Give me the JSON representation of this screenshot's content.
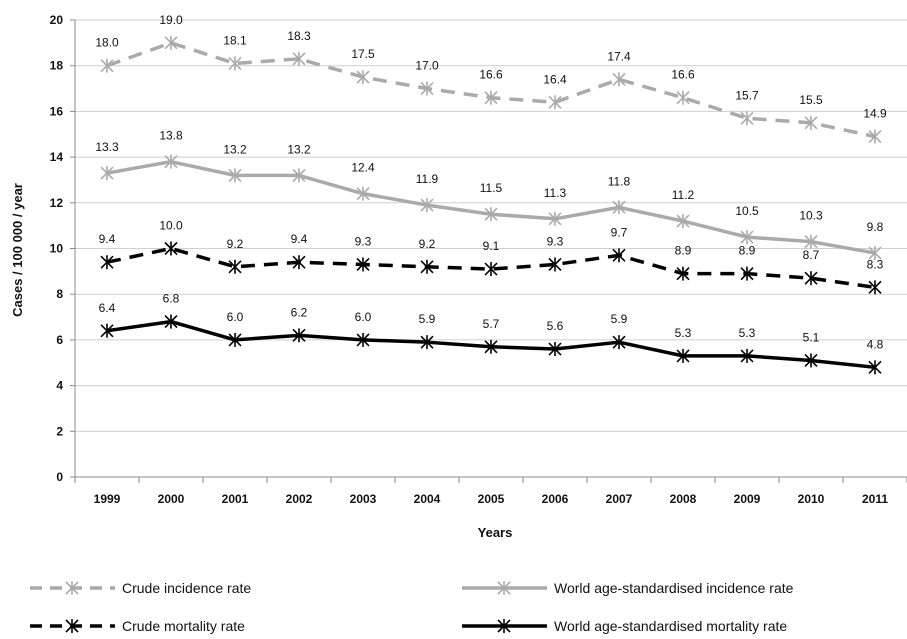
{
  "chart_data": {
    "type": "line",
    "xlabel": "Years",
    "ylabel": "Cases / 100 000 / year",
    "ylim": [
      0,
      20
    ],
    "yticks": [
      "0",
      "2",
      "4",
      "6",
      "8",
      "10",
      "12",
      "14",
      "16",
      "18",
      "20"
    ],
    "categories": [
      "1999",
      "2000",
      "2001",
      "2002",
      "2003",
      "2004",
      "2005",
      "2006",
      "2007",
      "2008",
      "2009",
      "2010",
      "2011"
    ],
    "grid": "horizontal",
    "legend_position": "bottom",
    "series": [
      {
        "name": "Crude incidence rate",
        "color": "#aaaaaa",
        "dash": "dashed",
        "values": [
          18.0,
          19.0,
          18.1,
          18.3,
          17.5,
          17.0,
          16.6,
          16.4,
          17.4,
          16.6,
          15.7,
          15.5,
          14.9
        ],
        "labels": [
          "18.0",
          "19.0",
          "18.1",
          "18.3",
          "17.5",
          "17.0",
          "16.6",
          "16.4",
          "17.4",
          "16.6",
          "15.7",
          "15.5",
          "14.9"
        ]
      },
      {
        "name": "World age-standardised  incidence  rate",
        "color": "#aaaaaa",
        "dash": "solid",
        "values": [
          13.3,
          13.8,
          13.2,
          13.2,
          12.4,
          11.9,
          11.5,
          11.3,
          11.8,
          11.2,
          10.5,
          10.3,
          9.8
        ],
        "labels": [
          "13.3",
          "13.8",
          "13.2",
          "13.2",
          "12.4",
          "11.9",
          "11.5",
          "11.3",
          "11.8",
          "11.2",
          "10.5",
          "10.3",
          "9.8"
        ]
      },
      {
        "name": "Crude mortality rate",
        "color": "#000000",
        "dash": "dashed",
        "values": [
          9.4,
          10.0,
          9.2,
          9.4,
          9.3,
          9.2,
          9.1,
          9.3,
          9.7,
          8.9,
          8.9,
          8.7,
          8.3
        ],
        "labels": [
          "9.4",
          "10.0",
          "9.2",
          "9.4",
          "9.3",
          "9.2",
          "9.1",
          "9.3",
          "9.7",
          "8.9",
          "8.9",
          "8.7",
          "8.3"
        ]
      },
      {
        "name": "World age-standardised  mortality rate",
        "color": "#000000",
        "dash": "solid",
        "values": [
          6.4,
          6.8,
          6.0,
          6.2,
          6.0,
          5.9,
          5.7,
          5.6,
          5.9,
          5.3,
          5.3,
          5.1,
          4.8
        ],
        "labels": [
          "6.4",
          "6.8",
          "6.0",
          "6.2",
          "6.0",
          "5.9",
          "5.7",
          "5.6",
          "5.9",
          "5.3",
          "5.3",
          "5.1",
          "4.8"
        ]
      }
    ]
  }
}
